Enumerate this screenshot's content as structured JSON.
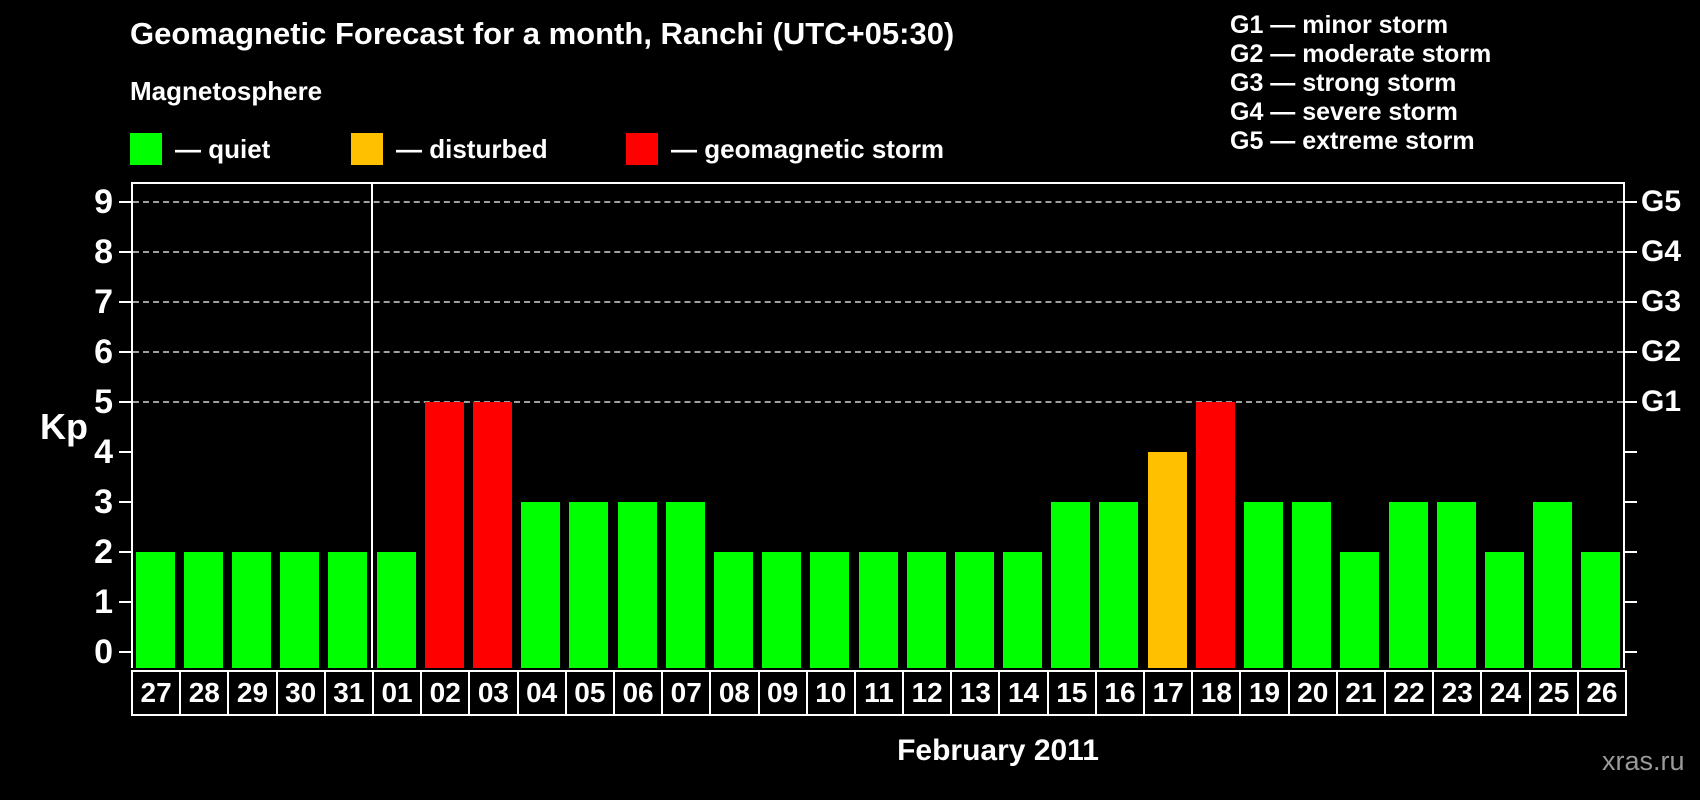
{
  "colors": {
    "background": "#000000",
    "text": "#ffffff",
    "quiet": "#00ff00",
    "disturbed": "#ffc000",
    "storm": "#ff0000",
    "grid": "#a0a0a0",
    "axis": "#ffffff",
    "watermark": "#9a9a9a"
  },
  "header": {
    "subtitle": "Magnetosphere",
    "legend": [
      {
        "status": "quiet",
        "label": "— quiet",
        "color": "#00ff00"
      },
      {
        "status": "disturbed",
        "label": "— disturbed",
        "color": "#ffc000"
      },
      {
        "status": "storm",
        "label": "— geomagnetic storm",
        "color": "#ff0000"
      }
    ],
    "g_legend": [
      "G1 — minor storm",
      "G2 — moderate storm",
      "G3 — strong storm",
      "G4 — severe storm",
      "G5 — extreme storm"
    ]
  },
  "chart_data": {
    "type": "bar",
    "title": "Geomagnetic Forecast for a month, Ranchi (UTC+05:30)",
    "xlabel": "February 2011",
    "ylabel": "Kp",
    "ylim": [
      0,
      9
    ],
    "yticks": [
      0,
      1,
      2,
      3,
      4,
      5,
      6,
      7,
      8,
      9
    ],
    "gridline_values": [
      5,
      6,
      7,
      8,
      9
    ],
    "grid": "dashed, horizontal, at Kp 5-9 only",
    "right_axis_labels": [
      {
        "value": 5,
        "label": "G1"
      },
      {
        "value": 6,
        "label": "G2"
      },
      {
        "value": 7,
        "label": "G3"
      },
      {
        "value": 8,
        "label": "G4"
      },
      {
        "value": 9,
        "label": "G5"
      }
    ],
    "month_boundary_after_index": 4,
    "categories": [
      "27",
      "28",
      "29",
      "30",
      "31",
      "01",
      "02",
      "03",
      "04",
      "05",
      "06",
      "07",
      "08",
      "09",
      "10",
      "11",
      "12",
      "13",
      "14",
      "15",
      "16",
      "17",
      "18",
      "19",
      "20",
      "21",
      "22",
      "23",
      "24",
      "25",
      "26"
    ],
    "values": [
      2,
      2,
      2,
      2,
      2,
      2,
      5,
      5,
      3,
      3,
      3,
      3,
      2,
      2,
      2,
      2,
      2,
      2,
      2,
      3,
      3,
      4,
      5,
      3,
      3,
      2,
      3,
      3,
      2,
      3,
      2
    ],
    "statuses": [
      "quiet",
      "quiet",
      "quiet",
      "quiet",
      "quiet",
      "quiet",
      "storm",
      "storm",
      "quiet",
      "quiet",
      "quiet",
      "quiet",
      "quiet",
      "quiet",
      "quiet",
      "quiet",
      "quiet",
      "quiet",
      "quiet",
      "quiet",
      "quiet",
      "disturbed",
      "storm",
      "quiet",
      "quiet",
      "quiet",
      "quiet",
      "quiet",
      "quiet",
      "quiet",
      "quiet"
    ]
  },
  "footer": {
    "watermark": "xras.ru"
  }
}
